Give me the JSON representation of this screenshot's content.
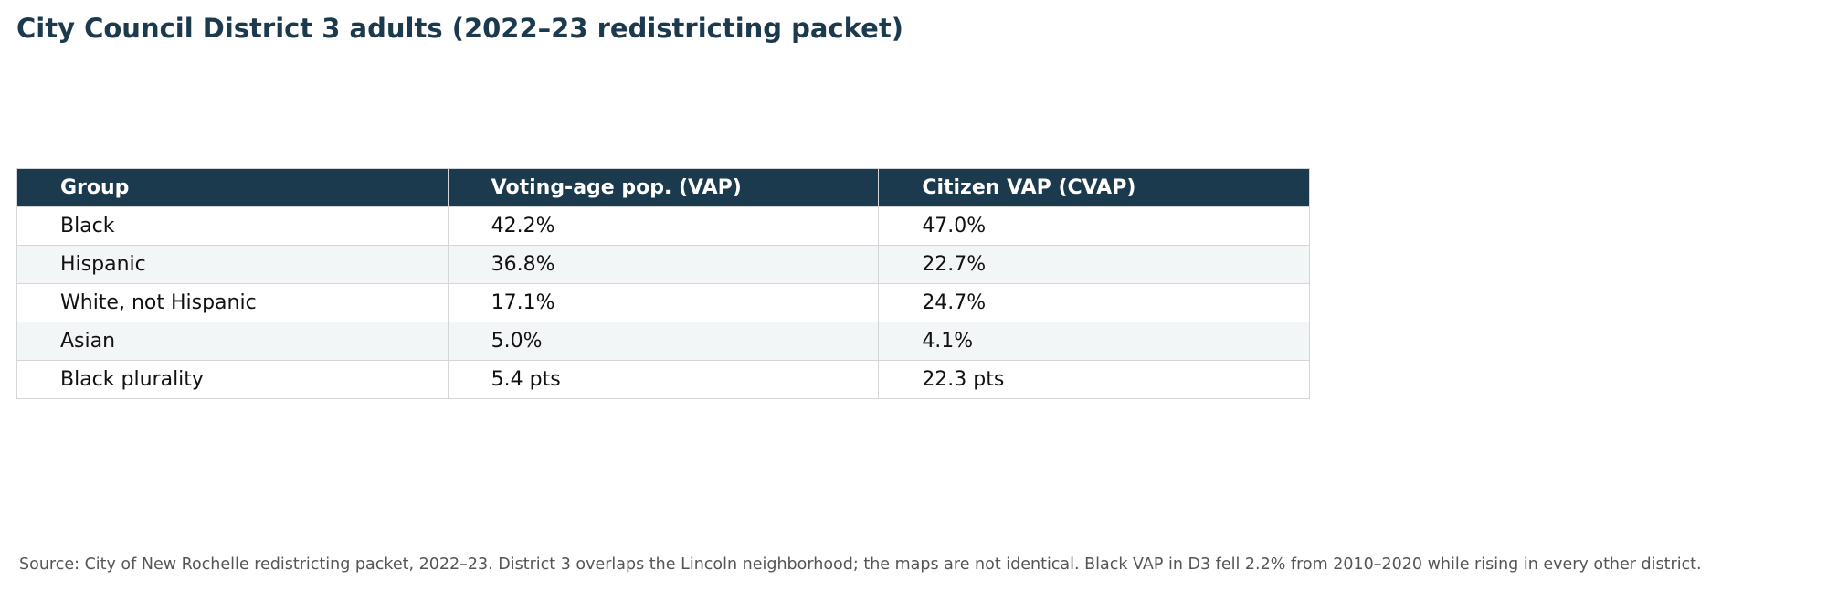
{
  "chart_data": {
    "type": "table",
    "title": "City Council District 3 adults (2022–23 redistricting packet)",
    "columns": [
      "Group",
      "Voting-age pop. (VAP)",
      "Citizen VAP (CVAP)"
    ],
    "rows": [
      [
        "Black",
        "42.2%",
        "47.0%"
      ],
      [
        "Hispanic",
        "36.8%",
        "22.7%"
      ],
      [
        "White, not Hispanic",
        "17.1%",
        "24.7%"
      ],
      [
        "Asian",
        "5.0%",
        "4.1%"
      ],
      [
        "Black plurality",
        "5.4 pts",
        "22.3 pts"
      ]
    ],
    "source": "Source: City of New Rochelle redistricting packet, 2022–23. District 3 overlaps the Lincoln neighborhood; the maps are not identical. Black VAP in D3 fell 2.2% from 2010–2020 while rising in every other district."
  },
  "colors": {
    "header_bg": "#1c3a4d",
    "title_text": "#1c3a4d",
    "stripe_bg": "#f3f6f7",
    "border": "#d3d6da"
  }
}
